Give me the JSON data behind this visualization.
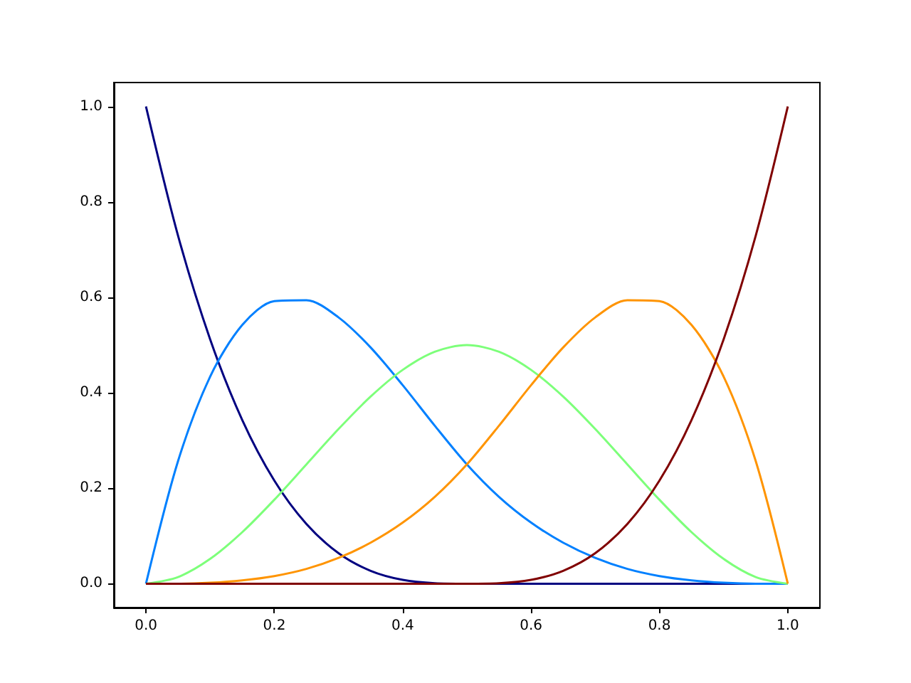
{
  "chart_data": {
    "type": "line",
    "x": [
      0,
      0.05,
      0.1,
      0.15,
      0.2,
      0.25,
      0.3,
      0.35,
      0.4,
      0.45,
      0.5,
      0.55,
      0.6,
      0.65,
      0.7,
      0.75,
      0.8,
      0.85,
      0.9,
      0.95,
      1.0
    ],
    "series": [
      {
        "color": "#000080",
        "values": [
          1,
          0.729,
          0.512,
          0.343,
          0.216,
          0.125,
          0.064,
          0.027,
          0.008,
          0.001,
          0,
          0,
          0,
          0,
          0,
          0,
          0,
          0,
          0,
          0,
          0
        ]
      },
      {
        "color": "#0080ff",
        "values": [
          0,
          0.257,
          0.434,
          0.542,
          0.592,
          0.594,
          0.558,
          0.495,
          0.416,
          0.331,
          0.25,
          0.182,
          0.128,
          0.086,
          0.054,
          0.031,
          0.016,
          0.007,
          0.002,
          0,
          0
        ]
      },
      {
        "color": "#7dff7a",
        "values": [
          0,
          0.014,
          0.052,
          0.108,
          0.176,
          0.25,
          0.324,
          0.392,
          0.448,
          0.486,
          0.5,
          0.486,
          0.448,
          0.392,
          0.324,
          0.25,
          0.176,
          0.108,
          0.052,
          0.014,
          0
        ]
      },
      {
        "color": "#ff9400",
        "values": [
          0,
          0,
          0.002,
          0.007,
          0.016,
          0.031,
          0.054,
          0.086,
          0.128,
          0.182,
          0.25,
          0.331,
          0.416,
          0.495,
          0.558,
          0.594,
          0.592,
          0.542,
          0.434,
          0.257,
          0
        ]
      },
      {
        "color": "#800000",
        "values": [
          0,
          0,
          0,
          0,
          0,
          0,
          0,
          0,
          0,
          0,
          0,
          0.001,
          0.008,
          0.027,
          0.064,
          0.125,
          0.216,
          0.343,
          0.512,
          0.729,
          1
        ]
      }
    ],
    "xlim": [
      -0.05,
      1.05
    ],
    "xticks": [
      {
        "value": 0,
        "label": "0.0"
      },
      {
        "value": 0.2,
        "label": "0.2"
      },
      {
        "value": 0.4,
        "label": "0.4"
      },
      {
        "value": 0.6,
        "label": "0.6"
      },
      {
        "value": 0.8,
        "label": "0.8"
      },
      {
        "value": 1,
        "label": "1.0"
      }
    ],
    "ylim": [
      -0.05,
      1.05
    ],
    "yticks": [
      {
        "value": 0,
        "label": "0.0"
      },
      {
        "value": 0.2,
        "label": "0.2"
      },
      {
        "value": 0.4,
        "label": "0.4"
      },
      {
        "value": 0.6,
        "label": "0.6"
      },
      {
        "value": 0.8,
        "label": "0.8"
      },
      {
        "value": 1,
        "label": "1.0"
      }
    ],
    "marker": "none",
    "line_style": "solid"
  }
}
